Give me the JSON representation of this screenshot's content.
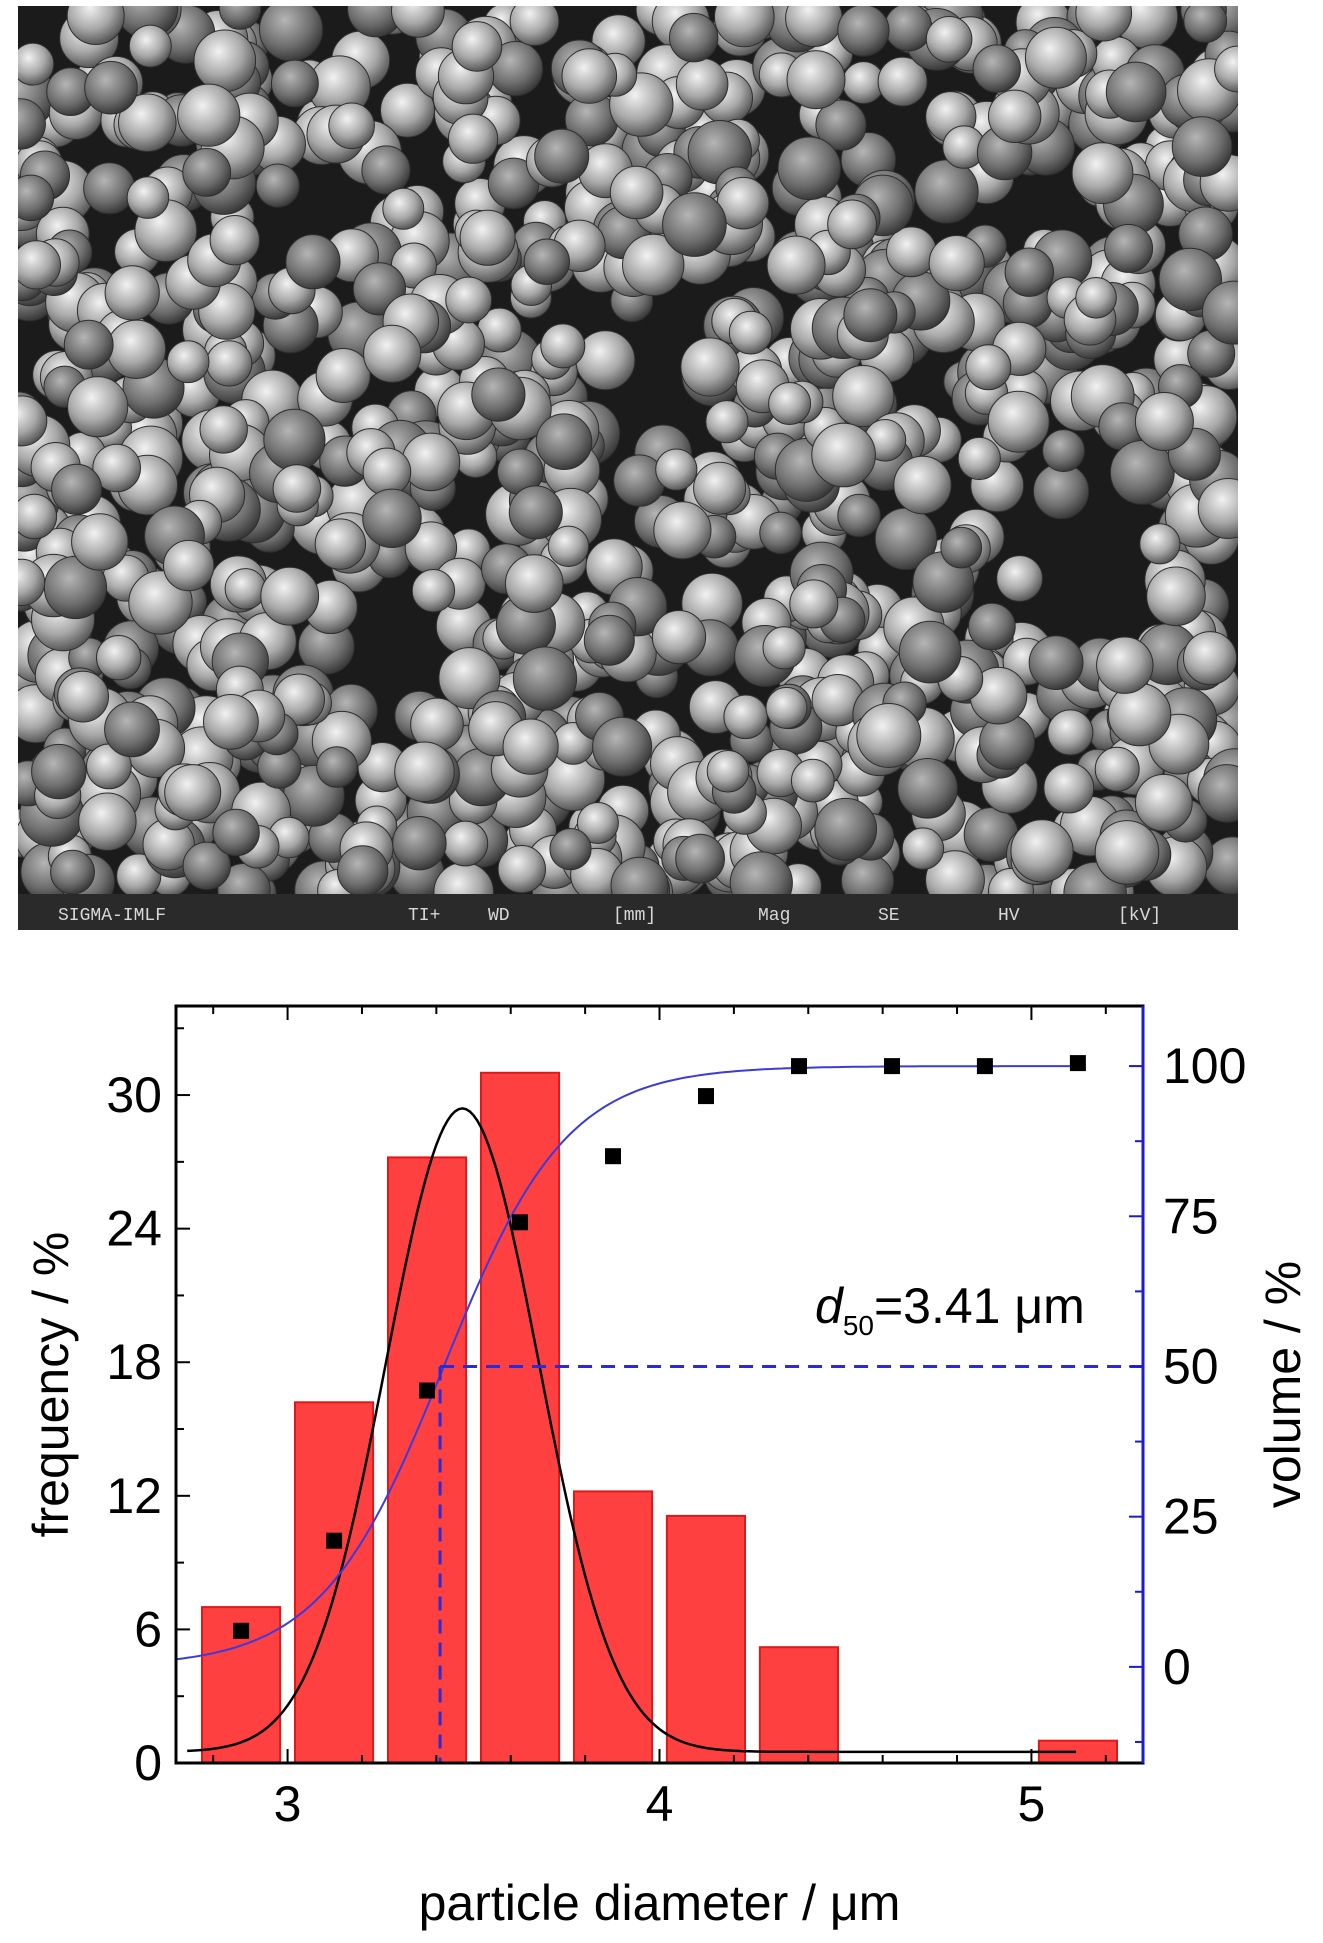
{
  "sem_image": {
    "description_icon": "sem-micrograph-image",
    "databar_text": [
      "SIGMA-IMLF",
      "TI+",
      "WD",
      "[mm]",
      "Mag",
      "SE",
      "HV",
      "[kV]"
    ]
  },
  "chart_data": {
    "type": "bar",
    "xlabel": "particle diameter / μm",
    "ylabel": "frequency / %",
    "y2label": "volume / %",
    "xlim": [
      2.7,
      5.3
    ],
    "ylim": [
      0,
      34
    ],
    "y2lim": [
      -16,
      110
    ],
    "x_ticks": [
      3,
      4,
      5
    ],
    "y_ticks": [
      0,
      6,
      12,
      18,
      24,
      30
    ],
    "y2_ticks": [
      0,
      25,
      50,
      75,
      100
    ],
    "grid": false,
    "bars": {
      "centers": [
        2.875,
        3.125,
        3.375,
        3.625,
        3.875,
        4.125,
        4.375,
        5.125
      ],
      "width": 0.21,
      "values": [
        7.0,
        16.2,
        27.2,
        31.0,
        12.2,
        11.1,
        5.2,
        1.0
      ],
      "color": "#ff4040",
      "edge_color": "#e01818"
    },
    "frequency_fit": {
      "color": "#000000",
      "mean": 3.47,
      "sd": 0.205,
      "amplitude": 28.9,
      "baseline": 0.5
    },
    "volume_points": {
      "x": [
        2.875,
        3.125,
        3.375,
        3.625,
        3.875,
        4.125,
        4.375,
        4.625,
        4.875,
        5.125
      ],
      "y": [
        6,
        21,
        46,
        74,
        85,
        95,
        100,
        100,
        100,
        100.5
      ],
      "color": "#000000"
    },
    "volume_fit": {
      "color": "#3a3adf",
      "center": 3.42,
      "slope": 0.165,
      "upper": 100,
      "lower": 0
    },
    "d50": {
      "value": 3.41,
      "label_var": "d",
      "label_sub": "50",
      "label_rest": "=3.41 μm",
      "volume_level": 50,
      "line_color": "#2b2bd6"
    },
    "left_axis_color": "#000000",
    "right_axis_color": "#1a1ad8"
  }
}
